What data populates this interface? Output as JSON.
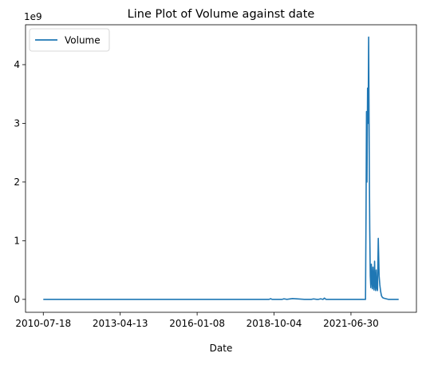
{
  "chart_data": {
    "type": "line",
    "title": "Line Plot of Volume against date",
    "xlabel": "Date",
    "ylabel": "",
    "y_offset_label": "1e9",
    "x_tick_labels": [
      "2010-07-18",
      "2013-04-13",
      "2016-01-08",
      "2018-10-04",
      "2021-06-30"
    ],
    "y_tick_labels": [
      "0",
      "1",
      "2",
      "3",
      "4"
    ],
    "y_tick_values": [
      0,
      1,
      2,
      3,
      4
    ],
    "ylim": [
      -0.22,
      4.68
    ],
    "grid": false,
    "legend_position": "top-left",
    "series": [
      {
        "name": "Volume",
        "color": "#1f77b4",
        "y_unit": "1e9",
        "x": [
          "2010-07-18",
          "2018-08-01",
          "2018-08-20",
          "2018-09-10",
          "2019-01-15",
          "2019-02-10",
          "2019-03-20",
          "2019-06-01",
          "2019-11-01",
          "2020-02-01",
          "2020-03-01",
          "2020-04-10",
          "2020-05-01",
          "2020-06-01",
          "2020-07-01",
          "2020-07-20",
          "2020-08-10",
          "2021-01-01",
          "2021-06-30",
          "2022-01-05",
          "2022-01-12",
          "2022-01-18",
          "2022-01-24",
          "2022-02-01",
          "2022-02-08",
          "2022-02-15",
          "2022-02-22",
          "2022-03-01",
          "2022-03-08",
          "2022-03-15",
          "2022-03-22",
          "2022-03-29",
          "2022-04-05",
          "2022-04-12",
          "2022-04-19",
          "2022-04-26",
          "2022-05-03",
          "2022-05-10",
          "2022-05-17",
          "2022-05-24",
          "2022-06-01",
          "2022-06-10",
          "2022-06-20",
          "2022-07-01",
          "2022-07-10",
          "2022-07-20",
          "2022-08-01",
          "2022-08-15",
          "2022-09-01",
          "2022-10-01",
          "2022-11-01",
          "2023-01-01",
          "2023-03-12"
        ],
        "values": [
          0,
          0,
          0.012,
          0,
          0,
          0.01,
          0,
          0.014,
          0,
          0,
          0.008,
          0,
          0,
          0.01,
          0,
          0.022,
          0,
          0,
          0,
          0,
          1.5,
          3.2,
          2.0,
          3.6,
          3.0,
          4.47,
          2.6,
          1.2,
          0.4,
          0.2,
          0.6,
          0.35,
          0.18,
          0.55,
          0.3,
          0.16,
          0.65,
          0.25,
          0.15,
          0.5,
          0.2,
          0.15,
          1.04,
          0.4,
          0.25,
          0.14,
          0.06,
          0.03,
          0.02,
          0.01,
          0,
          0,
          0
        ]
      }
    ]
  }
}
